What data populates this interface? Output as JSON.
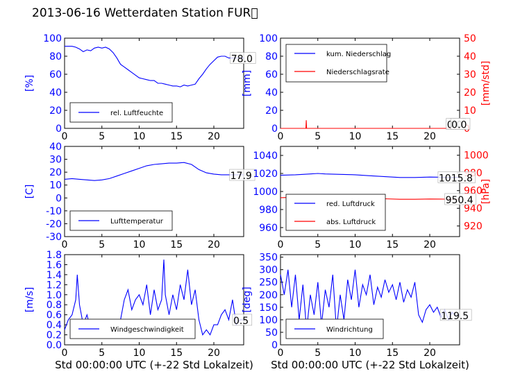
{
  "title": "2013-06-16 Wetterdaten Station FUR\u0000",
  "colors": {
    "primary": "#0000ff",
    "secondary": "#ff0000",
    "axis": "#000000"
  },
  "chart_data": [
    {
      "id": "humidity",
      "type": "line",
      "ylabel": "[%]",
      "ylim": [
        0,
        100
      ],
      "yticks": [
        0,
        20,
        40,
        60,
        80,
        100
      ],
      "xlim": [
        0,
        24
      ],
      "xticks": [
        0,
        5,
        10,
        15,
        20
      ],
      "xlabel": "",
      "series": [
        {
          "name": "rel. Luftfeuchte",
          "color": "#0000ff",
          "x": [
            0,
            1,
            1.5,
            2,
            2.5,
            3,
            3.5,
            4,
            4.5,
            5,
            5.5,
            6,
            6.5,
            7,
            7.5,
            8,
            8.5,
            9,
            9.5,
            10,
            10.5,
            11,
            11.5,
            12,
            12.5,
            13,
            13.5,
            14,
            14.5,
            15,
            15.5,
            16,
            16.5,
            17,
            17.5,
            18,
            18.5,
            19,
            19.5,
            20,
            20.5,
            21,
            21.5,
            22,
            23,
            24
          ],
          "y": [
            91,
            91,
            90,
            88,
            85,
            87,
            86,
            89,
            90,
            89,
            90,
            88,
            84,
            78,
            71,
            68,
            65,
            62,
            59,
            56,
            55,
            54,
            53,
            53,
            50,
            50,
            49,
            48,
            47,
            47,
            46,
            48,
            47,
            48,
            49,
            55,
            60,
            66,
            71,
            75,
            79,
            80,
            80,
            78,
            78,
            78
          ]
        }
      ],
      "annotations": [
        "78.0"
      ],
      "legend": "lower-left"
    },
    {
      "id": "precip",
      "type": "line",
      "ylabel": "[mm]",
      "ylim": [
        0,
        100
      ],
      "yticks": [
        0,
        20,
        40,
        60,
        80,
        100
      ],
      "y2label": "[mm/std]",
      "y2lim": [
        0,
        50
      ],
      "y2ticks": [
        0,
        10,
        20,
        30,
        40,
        50
      ],
      "xlim": [
        0,
        24
      ],
      "xticks": [
        0,
        5,
        10,
        15,
        20
      ],
      "xlabel": "",
      "series": [
        {
          "name": "kum. Niederschlag",
          "color": "#0000ff",
          "axis": "left",
          "x": [
            0,
            24
          ],
          "y": [
            0,
            0
          ]
        },
        {
          "name": "Niederschlagsrate",
          "color": "#ff0000",
          "axis": "right",
          "x": [
            0,
            3.4,
            3.45,
            3.5,
            3.55,
            24
          ],
          "y": [
            0,
            0,
            4.5,
            0,
            0,
            0
          ]
        }
      ],
      "annotations": [
        "0.0",
        "0.0"
      ],
      "legend": "upper-left"
    },
    {
      "id": "temperature",
      "type": "line",
      "ylabel": "[C]",
      "ylim": [
        -30,
        40
      ],
      "yticks": [
        -30,
        -20,
        -10,
        0,
        10,
        20,
        30,
        40
      ],
      "xlim": [
        0,
        24
      ],
      "xticks": [
        0,
        5,
        10,
        15,
        20
      ],
      "xlabel": "",
      "series": [
        {
          "name": "Lufttemperatur",
          "color": "#0000ff",
          "x": [
            0,
            1,
            2,
            3,
            4,
            5,
            6,
            7,
            8,
            9,
            10,
            11,
            12,
            13,
            14,
            15,
            16,
            17,
            18,
            19,
            20,
            21,
            22,
            23,
            24
          ],
          "y": [
            14.5,
            15,
            14.5,
            14,
            13.5,
            14,
            15,
            17,
            19,
            21,
            23,
            25,
            26,
            26.5,
            27,
            27,
            27.5,
            26,
            22,
            19.5,
            18.5,
            18,
            18,
            17.9,
            17.9
          ]
        }
      ],
      "annotations": [
        "17.9"
      ],
      "legend": "lower-left"
    },
    {
      "id": "pressure",
      "type": "line",
      "ylabel": "",
      "ylim": [
        950,
        1050
      ],
      "yticks": [
        960,
        980,
        1000,
        1020,
        1040
      ],
      "y2label": "[hPa]",
      "y2lim": [
        908,
        1010
      ],
      "y2ticks": [
        920,
        940,
        960,
        980,
        1000
      ],
      "xlim": [
        0,
        24
      ],
      "xticks": [
        0,
        5,
        10,
        15,
        20
      ],
      "xlabel": "",
      "series": [
        {
          "name": "red. Luftdruck",
          "color": "#0000ff",
          "axis": "left",
          "x": [
            0,
            2,
            4,
            5,
            6,
            8,
            10,
            12,
            14,
            16,
            18,
            20,
            22,
            24
          ],
          "y": [
            1018,
            1018.5,
            1019.5,
            1020,
            1019.5,
            1019,
            1018.5,
            1017.5,
            1016.5,
            1015.5,
            1015.5,
            1016,
            1015.8,
            1015.8
          ]
        },
        {
          "name": "abs. Luftdruck",
          "color": "#ff0000",
          "axis": "right",
          "x": [
            0,
            2,
            4,
            5,
            6,
            8,
            10,
            12,
            14,
            16,
            18,
            20,
            22,
            24
          ],
          "y": [
            952,
            952.5,
            953.5,
            954,
            953.5,
            953,
            952.5,
            951.5,
            950.8,
            950.2,
            950.2,
            950.5,
            950.4,
            950.4
          ]
        }
      ],
      "annotations": [
        "1015.8",
        "950.4"
      ],
      "legend": "lower-left"
    },
    {
      "id": "wind_speed",
      "type": "line",
      "ylabel": "[m/s]",
      "ylim": [
        0,
        1.8
      ],
      "yticks": [
        0.0,
        0.2,
        0.4,
        0.6,
        0.8,
        1.0,
        1.2,
        1.4,
        1.6,
        1.8
      ],
      "xlim": [
        0,
        24
      ],
      "xticks": [
        0,
        5,
        10,
        15,
        20
      ],
      "xlabel": "Std 00:00:00 UTC (+-22 Std Lokalzeit)",
      "series": [
        {
          "name": "Windgeschwindigkeit",
          "color": "#0000ff",
          "x": [
            0,
            0.5,
            1,
            1.5,
            1.7,
            2,
            2.5,
            3,
            3.5,
            4,
            4.5,
            5,
            5.5,
            6,
            6.5,
            7,
            7.5,
            8,
            8.5,
            9,
            9.5,
            10,
            10.5,
            11,
            11.5,
            12,
            12.5,
            13,
            13.3,
            13.5,
            14,
            14.5,
            15,
            15.5,
            16,
            16.5,
            17,
            17.5,
            18,
            18.5,
            19,
            19.5,
            20,
            20.5,
            21,
            21.5,
            22,
            22.5,
            23,
            23.5,
            24
          ],
          "y": [
            0.3,
            0.5,
            0.6,
            0.9,
            1.4,
            0.8,
            0.4,
            0.6,
            0.3,
            0.5,
            0.4,
            0.3,
            0.2,
            0.4,
            0.3,
            0.2,
            0.5,
            0.9,
            1.1,
            0.7,
            0.9,
            1.0,
            0.8,
            1.2,
            0.6,
            1.1,
            0.7,
            0.9,
            1.7,
            1.0,
            0.6,
            1.0,
            0.7,
            1.2,
            0.9,
            1.5,
            0.8,
            1.1,
            0.5,
            0.2,
            0.3,
            0.2,
            0.4,
            0.4,
            0.6,
            0.7,
            0.5,
            0.9,
            0.4,
            0.5,
            0.5
          ]
        }
      ],
      "annotations": [
        "0.5"
      ],
      "legend": "lower-left"
    },
    {
      "id": "wind_dir",
      "type": "line",
      "ylabel": "[deg]",
      "ylim": [
        0,
        360
      ],
      "yticks": [
        0,
        50,
        100,
        150,
        200,
        250,
        300,
        350
      ],
      "xlim": [
        0,
        24
      ],
      "xticks": [
        0,
        5,
        10,
        15,
        20
      ],
      "xlabel": "Std 00:00:00 UTC (+-22 Std Lokalzeit)",
      "series": [
        {
          "name": "Windrichtung",
          "color": "#0000ff",
          "x": [
            0,
            0.5,
            1,
            1.5,
            2,
            2.5,
            3,
            3.5,
            4,
            4.5,
            5,
            5.5,
            6,
            6.5,
            7,
            7.5,
            8,
            8.5,
            9,
            9.5,
            10,
            10.5,
            11,
            11.5,
            12,
            12.5,
            13,
            13.5,
            14,
            14.5,
            15,
            15.5,
            16,
            16.5,
            17,
            17.5,
            18,
            18.5,
            19,
            19.5,
            20,
            20.5,
            21,
            21.5,
            22,
            22.5,
            23,
            23.5,
            24
          ],
          "y": [
            280,
            200,
            300,
            150,
            280,
            100,
            240,
            60,
            200,
            120,
            250,
            80,
            220,
            150,
            280,
            60,
            200,
            100,
            260,
            180,
            300,
            150,
            240,
            200,
            280,
            160,
            230,
            190,
            260,
            210,
            240,
            180,
            250,
            170,
            220,
            190,
            250,
            120,
            90,
            140,
            160,
            130,
            150,
            110,
            140,
            100,
            130,
            115,
            120
          ]
        }
      ],
      "annotations": [
        "119.5"
      ],
      "legend": "lower-left"
    }
  ]
}
